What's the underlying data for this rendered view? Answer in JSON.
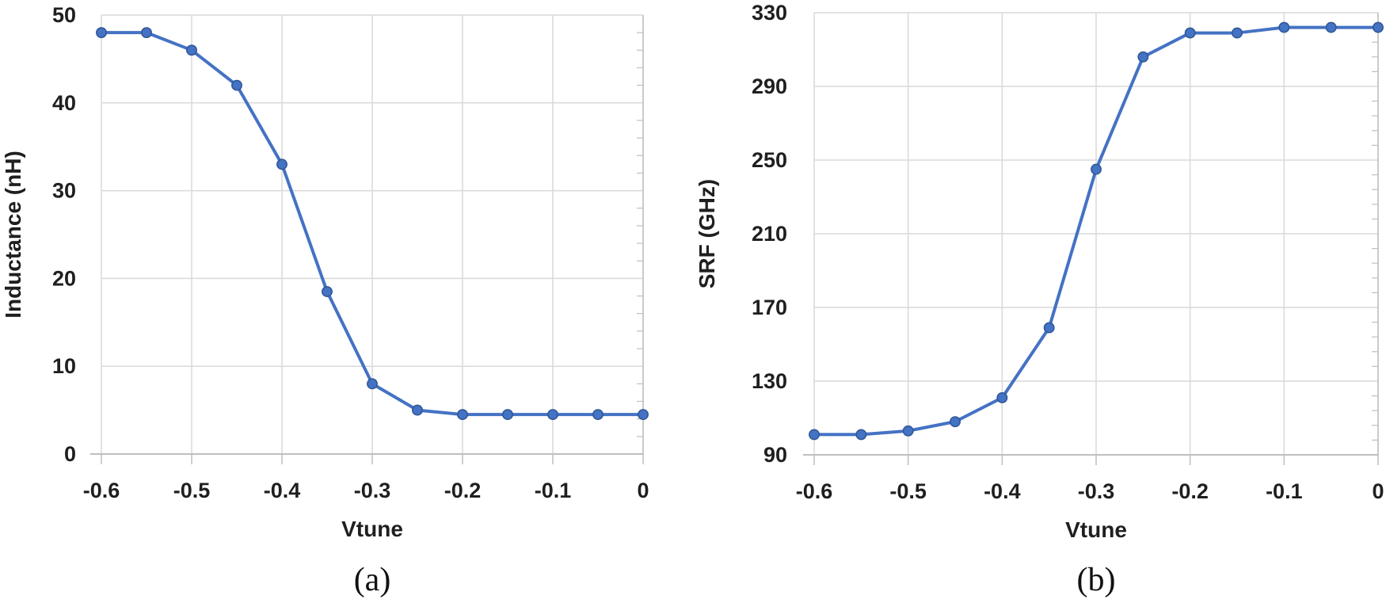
{
  "colors": {
    "line": "#4472C4",
    "marker_fill": "#4472C4",
    "marker_edge": "#2E5693",
    "gridline": "#D9D9D9",
    "axis": "#BFBFBF",
    "text": "#1F1F1F"
  },
  "chart_data": [
    {
      "id": "inductance",
      "type": "line",
      "title": "",
      "xlabel": "Vtune",
      "ylabel": "Inductance (nH)",
      "caption": "(a)",
      "legend": "none",
      "grid": true,
      "marker": "circle",
      "x": [
        -0.6,
        -0.55,
        -0.5,
        -0.45,
        -0.4,
        -0.35,
        -0.3,
        -0.25,
        -0.2,
        -0.15,
        -0.1,
        -0.05,
        0
      ],
      "values": [
        48,
        48,
        46,
        42,
        33,
        18.5,
        8,
        5,
        4.5,
        4.5,
        4.5,
        4.5,
        4.5
      ],
      "xlim": [
        -0.6,
        0
      ],
      "ylim": [
        0,
        50
      ],
      "x_ticks": [
        -0.6,
        -0.5,
        -0.4,
        -0.3,
        -0.2,
        -0.1,
        0
      ],
      "x_tick_labels": [
        "-0.6",
        "-0.5",
        "-0.4",
        "-0.3",
        "-0.2",
        "-0.1",
        "0"
      ],
      "y_ticks": [
        0,
        10,
        20,
        30,
        40,
        50
      ],
      "y_tick_labels": [
        "0",
        "10",
        "20",
        "30",
        "40",
        "50"
      ],
      "y_minor_tick_step": 2
    },
    {
      "id": "srf",
      "type": "line",
      "title": "",
      "xlabel": "Vtune",
      "ylabel": "SRF (GHz)",
      "caption": "(b)",
      "legend": "none",
      "grid": true,
      "marker": "circle",
      "x": [
        -0.6,
        -0.55,
        -0.5,
        -0.45,
        -0.4,
        -0.35,
        -0.3,
        -0.25,
        -0.2,
        -0.15,
        -0.1,
        -0.05,
        0
      ],
      "values": [
        101,
        101,
        103,
        108,
        121,
        159,
        245,
        306,
        319,
        319,
        322,
        322,
        322
      ],
      "xlim": [
        -0.6,
        0
      ],
      "ylim": [
        90,
        330
      ],
      "x_ticks": [
        -0.6,
        -0.5,
        -0.4,
        -0.3,
        -0.2,
        -0.1,
        0
      ],
      "x_tick_labels": [
        "-0.6",
        "-0.5",
        "-0.4",
        "-0.3",
        "-0.2",
        "-0.1",
        "0"
      ],
      "y_ticks": [
        90,
        130,
        170,
        210,
        250,
        290,
        330
      ],
      "y_tick_labels": [
        "90",
        "130",
        "170",
        "210",
        "250",
        "290",
        "330"
      ],
      "y_minor_tick_step": 8
    }
  ]
}
